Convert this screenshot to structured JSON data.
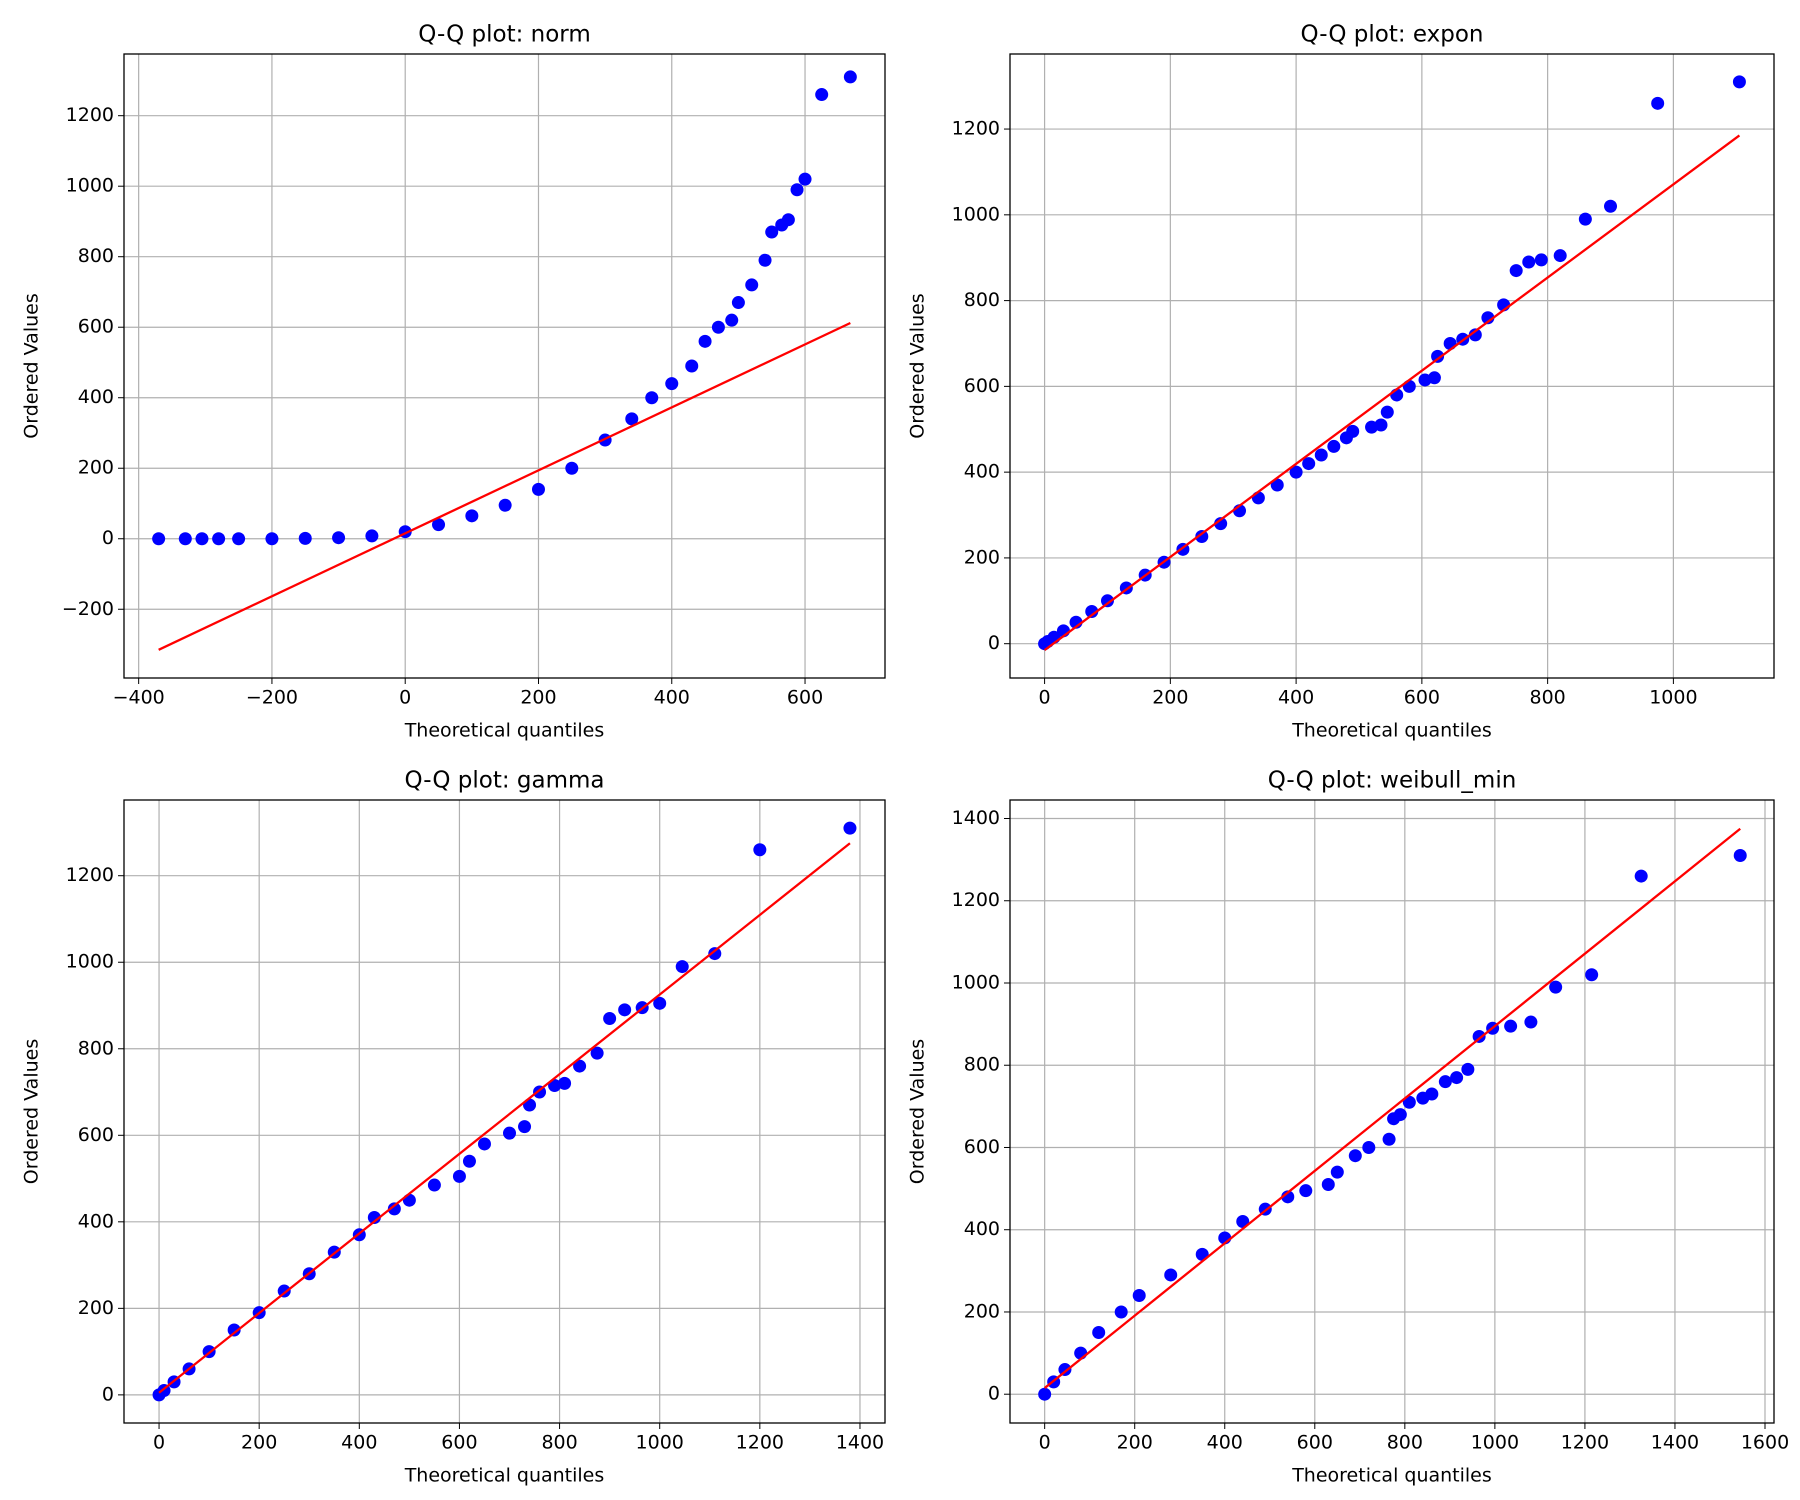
{
  "chart_data": [
    {
      "type": "scatter",
      "title": "Q-Q plot: norm",
      "xlabel": "Theoretical quantiles",
      "ylabel": "Ordered Values",
      "xlim": [
        -422,
        720
      ],
      "ylim": [
        -395,
        1375
      ],
      "xticks": [
        {
          "value": -400,
          "label": "−400"
        },
        {
          "value": -200,
          "label": "−200"
        },
        0,
        200,
        400,
        600
      ],
      "yticks": [
        {
          "value": -200,
          "label": "−200"
        },
        0,
        200,
        400,
        600,
        800,
        1000,
        1200
      ],
      "grid": true,
      "points": {
        "color": "#0000ff",
        "x": [
          -370,
          -330,
          -305,
          -280,
          -250,
          -200,
          -150,
          -100,
          -50,
          0,
          50,
          100,
          150,
          200,
          250,
          300,
          340,
          370,
          400,
          430,
          450,
          470,
          490,
          500,
          520,
          540,
          550,
          565,
          575,
          588,
          600,
          625,
          668
        ],
        "y": [
          0,
          0,
          0,
          0,
          0,
          0,
          1,
          3,
          8,
          20,
          40,
          65,
          95,
          140,
          200,
          280,
          340,
          400,
          440,
          490,
          560,
          600,
          620,
          670,
          720,
          790,
          870,
          890,
          905,
          990,
          1020,
          1260,
          1310
        ]
      },
      "fit_line": {
        "color": "#ff0000",
        "x": [
          -370,
          668
        ],
        "y": [
          -315,
          612
        ]
      }
    },
    {
      "type": "scatter",
      "title": "Q-Q plot: expon",
      "xlabel": "Theoretical quantiles",
      "ylabel": "Ordered Values",
      "xlim": [
        -55,
        1160
      ],
      "ylim": [
        -80,
        1375
      ],
      "xticks": [
        0,
        200,
        400,
        600,
        800,
        1000
      ],
      "yticks": [
        0,
        200,
        400,
        600,
        800,
        1000,
        1200
      ],
      "grid": true,
      "points": {
        "color": "#0000ff",
        "x": [
          0,
          5,
          15,
          30,
          50,
          75,
          100,
          130,
          160,
          190,
          220,
          250,
          280,
          310,
          340,
          370,
          400,
          420,
          440,
          460,
          480,
          490,
          520,
          535,
          545,
          560,
          580,
          605,
          620,
          625,
          645,
          665,
          685,
          705,
          730,
          750,
          770,
          790,
          820,
          860,
          900,
          975,
          1105
        ],
        "y": [
          0,
          5,
          15,
          30,
          50,
          75,
          100,
          130,
          160,
          190,
          220,
          250,
          280,
          310,
          340,
          370,
          400,
          420,
          440,
          460,
          480,
          495,
          505,
          510,
          540,
          580,
          600,
          615,
          620,
          670,
          700,
          710,
          720,
          760,
          790,
          870,
          890,
          895,
          905,
          990,
          1020,
          1260,
          1310
        ]
      },
      "fit_line": {
        "color": "#ff0000",
        "x": [
          0,
          1105
        ],
        "y": [
          -15,
          1185
        ]
      }
    },
    {
      "type": "scatter",
      "title": "Q-Q plot: gamma",
      "xlabel": "Theoretical quantiles",
      "ylabel": "Ordered Values",
      "xlim": [
        -70,
        1450
      ],
      "ylim": [
        -65,
        1375
      ],
      "xticks": [
        0,
        200,
        400,
        600,
        800,
        1000,
        1200,
        1400
      ],
      "yticks": [
        0,
        200,
        400,
        600,
        800,
        1000,
        1200
      ],
      "grid": true,
      "points": {
        "color": "#0000ff",
        "x": [
          0,
          10,
          30,
          60,
          100,
          150,
          200,
          250,
          300,
          350,
          400,
          430,
          470,
          500,
          550,
          600,
          620,
          650,
          700,
          730,
          740,
          760,
          790,
          810,
          840,
          875,
          900,
          930,
          965,
          1000,
          1045,
          1110,
          1200,
          1380
        ],
        "y": [
          0,
          10,
          30,
          60,
          100,
          150,
          190,
          240,
          280,
          330,
          370,
          410,
          430,
          450,
          485,
          505,
          540,
          580,
          605,
          620,
          670,
          700,
          715,
          720,
          760,
          790,
          870,
          890,
          895,
          905,
          990,
          1020,
          1260,
          1310
        ]
      },
      "fit_line": {
        "color": "#ff0000",
        "x": [
          0,
          1380
        ],
        "y": [
          5,
          1275
        ]
      }
    },
    {
      "type": "scatter",
      "title": "Q-Q plot: weibull_min",
      "xlabel": "Theoretical quantiles",
      "ylabel": "Ordered Values",
      "xlim": [
        -77,
        1620
      ],
      "ylim": [
        -70,
        1445
      ],
      "xticks": [
        0,
        200,
        400,
        600,
        800,
        1000,
        1200,
        1400,
        1600
      ],
      "yticks": [
        0,
        200,
        400,
        600,
        800,
        1000,
        1200,
        1400
      ],
      "grid": true,
      "points": {
        "color": "#0000ff",
        "x": [
          0,
          20,
          45,
          80,
          120,
          170,
          210,
          280,
          350,
          400,
          440,
          490,
          540,
          580,
          630,
          650,
          690,
          720,
          765,
          775,
          790,
          810,
          840,
          860,
          890,
          915,
          940,
          965,
          995,
          1035,
          1080,
          1135,
          1215,
          1325,
          1545
        ],
        "y": [
          0,
          30,
          60,
          100,
          150,
          200,
          240,
          290,
          340,
          380,
          420,
          450,
          480,
          495,
          510,
          540,
          580,
          600,
          620,
          670,
          680,
          710,
          720,
          730,
          760,
          770,
          790,
          870,
          890,
          895,
          905,
          990,
          1020,
          1260,
          1310
        ]
      },
      "fit_line": {
        "color": "#ff0000",
        "x": [
          0,
          1545
        ],
        "y": [
          15,
          1375
        ]
      }
    }
  ]
}
